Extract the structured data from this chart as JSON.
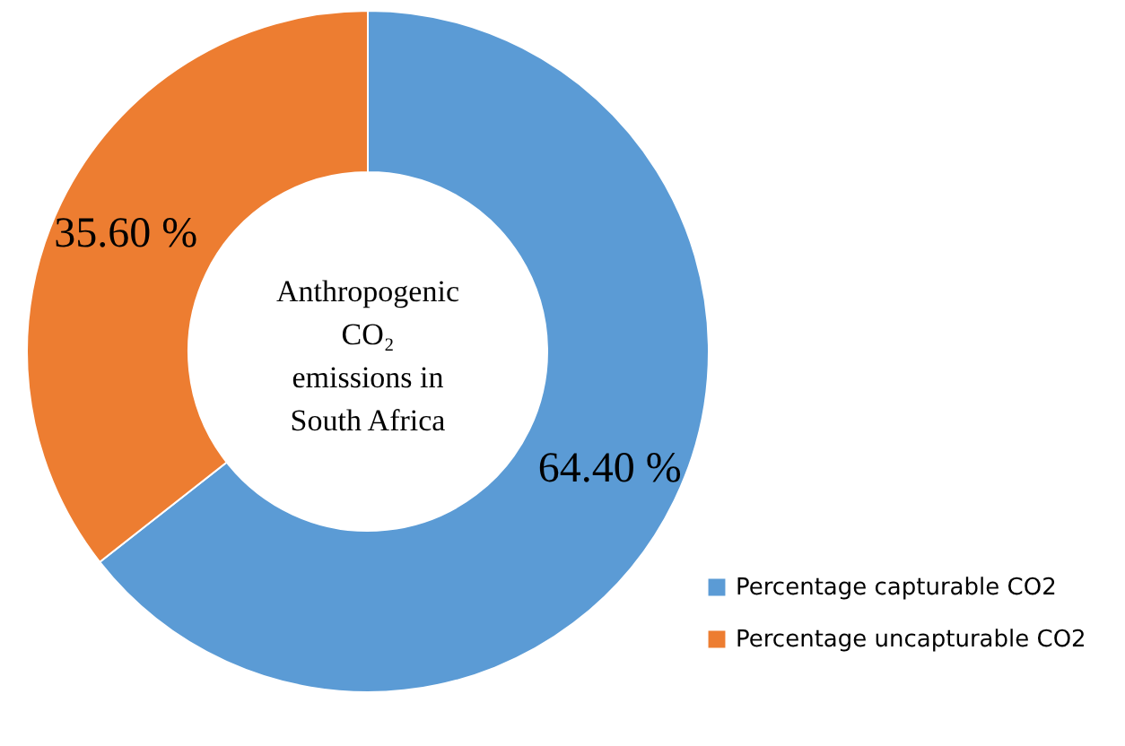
{
  "chart_data": {
    "type": "donut",
    "title": "Anthropogenic\nCO₂\nemissions  in\nSouth Africa",
    "categories": [
      "Percentage capturable CO2",
      "Percentage uncapturable CO2"
    ],
    "values": [
      64.4,
      35.6
    ],
    "colors": [
      "#5b9bd5",
      "#ed7d31"
    ],
    "value_labels": [
      "64.40 %",
      "35.60 %"
    ],
    "legend": "bottom right"
  }
}
